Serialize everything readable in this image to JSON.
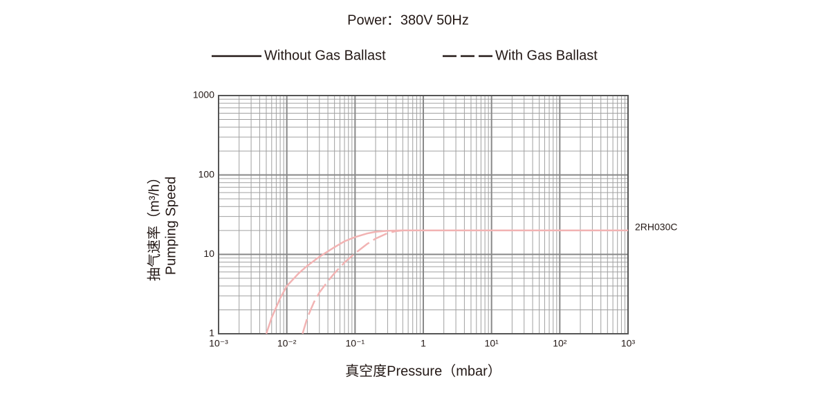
{
  "chart_data": {
    "type": "line",
    "title": "Power：380V 50Hz",
    "xlabel": "真空度Pressure（mbar）",
    "ylabel": [
      "抽气速率（m³/h）",
      "Pumping Speed"
    ],
    "xscale": "log",
    "yscale": "log",
    "xlim": [
      0.001,
      1000
    ],
    "ylim": [
      1,
      1000
    ],
    "xticks": [
      {
        "value": 0.001,
        "label": "10⁻³"
      },
      {
        "value": 0.01,
        "label": "10⁻²"
      },
      {
        "value": 0.1,
        "label": "10⁻¹"
      },
      1,
      {
        "value": 10,
        "label": "10¹"
      },
      {
        "value": 100,
        "label": "10²"
      },
      {
        "value": 1000,
        "label": "10³"
      }
    ],
    "yticks": [
      1,
      10,
      100,
      1000
    ],
    "grid": true,
    "minor_grid": true,
    "legend": "top",
    "series": [
      {
        "name": "Without Gas Ballast",
        "color": "#f2b3b3",
        "dash": "solid",
        "x": [
          0.005,
          0.006,
          0.008,
          0.01,
          0.015,
          0.02,
          0.03,
          0.05,
          0.07,
          0.1,
          0.15,
          0.2,
          0.3,
          0.5,
          1,
          10,
          100,
          1000
        ],
        "values": [
          1,
          1.6,
          2.8,
          4,
          5.8,
          7.2,
          9.3,
          12.3,
          14.6,
          16.5,
          18.3,
          19.2,
          19.8,
          20,
          20,
          20,
          20,
          20
        ]
      },
      {
        "name": "With Gas Ballast",
        "color": "#f2b3b3",
        "dash": "dashed",
        "x": [
          0.017,
          0.02,
          0.025,
          0.03,
          0.04,
          0.05,
          0.07,
          0.1,
          0.15,
          0.2,
          0.3,
          0.4,
          0.5,
          1,
          10,
          100,
          1000
        ],
        "values": [
          1,
          1.6,
          2.5,
          3.3,
          4.6,
          5.8,
          7.9,
          10.3,
          13.5,
          15.8,
          18.5,
          19.6,
          20,
          20,
          20,
          20,
          20
        ]
      }
    ],
    "annotation": "2RH030C"
  }
}
